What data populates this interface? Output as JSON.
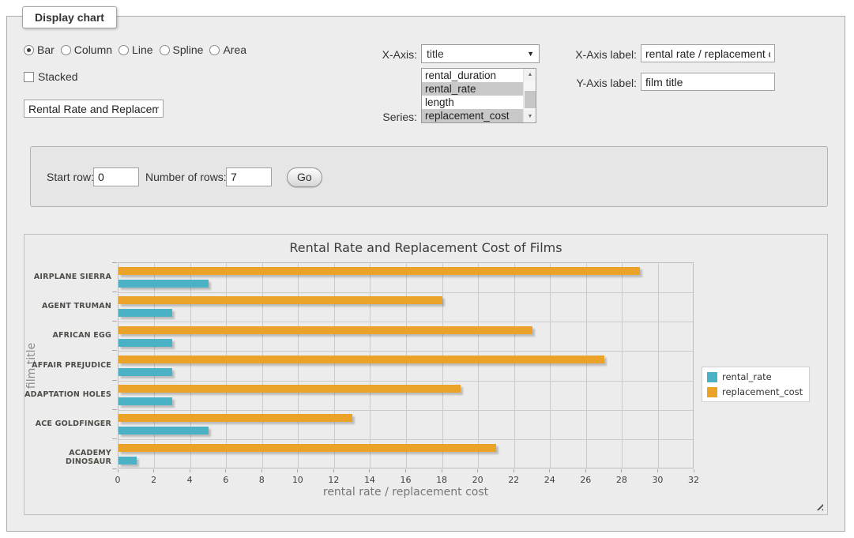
{
  "panel": {
    "legend": "Display chart"
  },
  "controls": {
    "chart_type": {
      "options": [
        {
          "label": "Bar",
          "selected": true
        },
        {
          "label": "Column",
          "selected": false
        },
        {
          "label": "Line",
          "selected": false
        },
        {
          "label": "Spline",
          "selected": false
        },
        {
          "label": "Area",
          "selected": false
        }
      ]
    },
    "stacked": {
      "label": "Stacked",
      "checked": false
    },
    "chart_title_input": {
      "value": "Rental Rate and Replacement Cost of Films"
    },
    "xaxis_select": {
      "label": "X-Axis:",
      "value": "title"
    },
    "series_select": {
      "label": "Series:",
      "options": [
        {
          "label": "rental_duration",
          "selected": false
        },
        {
          "label": "rental_rate",
          "selected": true
        },
        {
          "label": "length",
          "selected": false
        },
        {
          "label": "replacement_cost",
          "selected": true
        }
      ]
    },
    "xaxis_label_input": {
      "label": "X-Axis label:",
      "value": "rental rate / replacement cost"
    },
    "yaxis_label_input": {
      "label": "Y-Axis label:",
      "value": "film title"
    },
    "row_controls": {
      "start_row_label": "Start row:",
      "start_row_value": "0",
      "num_rows_label": "Number of rows:",
      "num_rows_value": "7",
      "go_label": "Go"
    }
  },
  "chart_data": {
    "type": "bar",
    "orientation": "horizontal",
    "title": "Rental Rate and Replacement Cost of Films",
    "categories": [
      "AIRPLANE SIERRA",
      "AGENT TRUMAN",
      "AFRICAN EGG",
      "AFFAIR PREJUDICE",
      "ADAPTATION HOLES",
      "ACE GOLDFINGER",
      "ACADEMY DINOSAUR"
    ],
    "series": [
      {
        "name": "rental_rate",
        "color": "#4bb2c5",
        "values": [
          4.99,
          2.99,
          2.99,
          2.99,
          2.99,
          4.99,
          0.99
        ]
      },
      {
        "name": "replacement_cost",
        "color": "#eaa228",
        "values": [
          28.99,
          17.99,
          22.99,
          26.99,
          18.99,
          12.99,
          20.99
        ]
      }
    ],
    "xlabel": "rental rate / replacement cost",
    "ylabel": "film title",
    "xlim": [
      0,
      32
    ],
    "xtick_step": 2,
    "grid": true,
    "legend_position": "right",
    "bar_row_order_top_to_bottom": [
      "replacement_cost",
      "rental_rate"
    ]
  }
}
